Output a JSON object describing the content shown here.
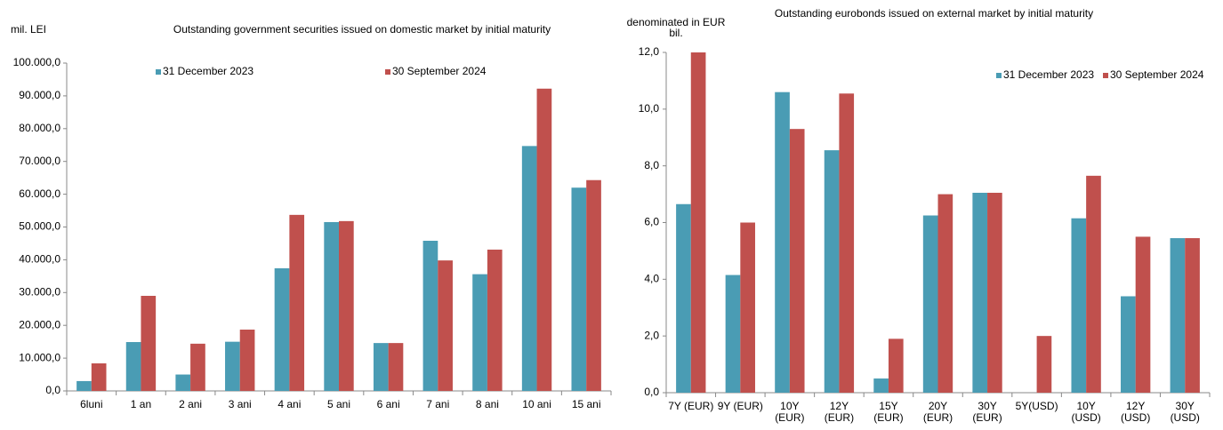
{
  "chart_data": [
    {
      "type": "bar",
      "title": "Outstanding government securities issued on domestic market by initial maturity",
      "y_label": "mil. LEI",
      "categories": [
        "6luni",
        "1 an",
        "2 ani",
        "3 ani",
        "4 ani",
        "5 ani",
        "6 ani",
        "7 ani",
        "8 ani",
        "10 ani",
        "15 ani"
      ],
      "series": [
        {
          "name": "31 December 2023",
          "color": "#4a9cb4",
          "values": [
            3000,
            14900,
            5000,
            15000,
            37400,
            51500,
            14600,
            45800,
            35600,
            74700,
            62000
          ]
        },
        {
          "name": "30 September 2024",
          "color": "#c0504d",
          "values": [
            8400,
            29000,
            14400,
            18700,
            53700,
            51800,
            14600,
            39800,
            43100,
            92200,
            64300
          ]
        }
      ],
      "ylim": [
        0,
        100000
      ],
      "yticks": [
        {
          "value": 0,
          "label": "0,0"
        },
        {
          "value": 10000,
          "label": "10.000,0"
        },
        {
          "value": 20000,
          "label": "20.000,0"
        },
        {
          "value": 30000,
          "label": "30.000,0"
        },
        {
          "value": 40000,
          "label": "40.000,0"
        },
        {
          "value": 50000,
          "label": "50.000,0"
        },
        {
          "value": 60000,
          "label": "60.000,0"
        },
        {
          "value": 70000,
          "label": "70.000,0"
        },
        {
          "value": 80000,
          "label": "80.000,0"
        },
        {
          "value": 90000,
          "label": "90.000,0"
        },
        {
          "value": 100000,
          "label": "100.000,0"
        }
      ],
      "grid": false,
      "legend": "top"
    },
    {
      "type": "bar",
      "title": "Outstanding eurobonds issued on external market by initial maturity",
      "y_label": "denominated in EUR\nbil.",
      "categories": [
        "7Y (EUR)",
        "9Y (EUR)",
        "10Y\n(EUR)",
        "12Y\n(EUR)",
        "15Y\n(EUR)",
        "20Y\n(EUR)",
        "30Y\n(EUR)",
        "5Y(USD)",
        "10Y\n(USD)",
        "12Y\n(USD)",
        "30Y\n(USD)"
      ],
      "series": [
        {
          "name": "31 December 2023",
          "color": "#4a9cb4",
          "values": [
            6.65,
            4.15,
            10.6,
            8.55,
            0.5,
            6.25,
            7.05,
            0,
            6.15,
            3.4,
            5.45
          ]
        },
        {
          "name": "30 September 2024",
          "color": "#c0504d",
          "values": [
            12.0,
            6.0,
            9.3,
            10.55,
            1.9,
            7.0,
            7.05,
            2.0,
            7.65,
            5.5,
            5.45
          ]
        }
      ],
      "ylim": [
        0,
        12
      ],
      "yticks": [
        {
          "value": 0,
          "label": "0,0"
        },
        {
          "value": 2,
          "label": "2,0"
        },
        {
          "value": 4,
          "label": "4,0"
        },
        {
          "value": 6,
          "label": "6,0"
        },
        {
          "value": 8,
          "label": "8,0"
        },
        {
          "value": 10,
          "label": "10,0"
        },
        {
          "value": 12,
          "label": "12,0"
        }
      ],
      "grid": false,
      "legend": "top"
    }
  ]
}
